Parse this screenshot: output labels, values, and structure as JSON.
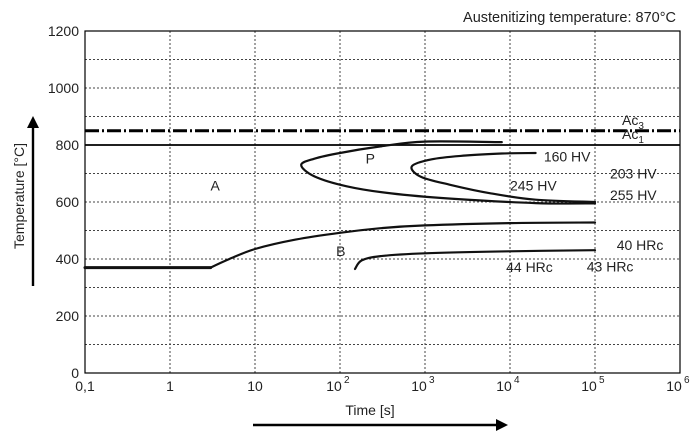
{
  "chart_data": {
    "type": "line",
    "title": "Austenitizing temperature: 870°C",
    "xlabel": "Time [s]",
    "ylabel": "Temperature [°C]",
    "x_scale": "log",
    "xlim": [
      0.1,
      1000000
    ],
    "ylim": [
      0,
      1200
    ],
    "x_ticks": [
      {
        "value": 0.1,
        "label": "0,1"
      },
      {
        "value": 1,
        "label": "1"
      },
      {
        "value": 10,
        "label": "10"
      },
      {
        "value": 100,
        "base": "10",
        "exp": "2"
      },
      {
        "value": 1000,
        "base": "10",
        "exp": "3"
      },
      {
        "value": 10000,
        "base": "10",
        "exp": "4"
      },
      {
        "value": 100000,
        "base": "10",
        "exp": "5"
      },
      {
        "value": 1000000,
        "base": "10",
        "exp": "6"
      }
    ],
    "y_ticks": [
      {
        "value": 0,
        "label": "0"
      },
      {
        "value": 200,
        "label": "200"
      },
      {
        "value": 400,
        "label": "400"
      },
      {
        "value": 600,
        "label": "600"
      },
      {
        "value": 800,
        "label": "800"
      },
      {
        "value": 1000,
        "label": "1000"
      },
      {
        "value": 1200,
        "label": "1200"
      }
    ],
    "grid": true,
    "horizontal_lines": [
      {
        "y": 850,
        "style": "dash-dot",
        "label_base": "Ac",
        "label_sub": "3"
      },
      {
        "y": 800,
        "style": "solid",
        "label_base": "Ac",
        "label_sub": "1"
      }
    ],
    "series": [
      {
        "style": "thick",
        "points": [
          [
            0.1,
            370
          ],
          [
            3,
            370
          ]
        ]
      },
      {
        "style": "solid",
        "points": [
          [
            3,
            370
          ],
          [
            5,
            400
          ],
          [
            10,
            435
          ],
          [
            30,
            468
          ],
          [
            100,
            492
          ],
          [
            300,
            508
          ],
          [
            1000,
            518
          ],
          [
            10000,
            526
          ],
          [
            100000,
            528
          ]
        ]
      },
      {
        "style": "solid",
        "points": [
          [
            8000,
            810
          ],
          [
            1000,
            812
          ],
          [
            300,
            795
          ],
          [
            100,
            772
          ],
          [
            50,
            752
          ],
          [
            35,
            730
          ],
          [
            50,
            690
          ],
          [
            120,
            655
          ],
          [
            400,
            630
          ],
          [
            2000,
            612
          ],
          [
            20000,
            596
          ],
          [
            100000,
            595
          ]
        ]
      },
      {
        "style": "solid",
        "points": [
          [
            20000,
            772
          ],
          [
            8000,
            770
          ],
          [
            3000,
            763
          ],
          [
            1200,
            750
          ],
          [
            700,
            725
          ],
          [
            900,
            688
          ],
          [
            2000,
            660
          ],
          [
            6000,
            630
          ],
          [
            20000,
            608
          ],
          [
            100000,
            600
          ]
        ]
      },
      {
        "style": "solid",
        "points": [
          [
            150,
            365
          ],
          [
            180,
            395
          ],
          [
            300,
            410
          ],
          [
            1000,
            420
          ],
          [
            10000,
            427
          ],
          [
            100000,
            431
          ]
        ]
      }
    ],
    "annotations": [
      {
        "text": "A",
        "x": 3,
        "y": 640
      },
      {
        "text": "P",
        "x": 200,
        "y": 735
      },
      {
        "text": "B",
        "x": 90,
        "y": 410
      },
      {
        "text": "160 HV",
        "x": 25000,
        "y": 742
      },
      {
        "text": "203 HV",
        "x": 150000,
        "y": 683
      },
      {
        "text": "245 HV",
        "x": 10000,
        "y": 640
      },
      {
        "text": "255 HV",
        "x": 150000,
        "y": 607
      },
      {
        "text": "40 HRc",
        "x": 180000,
        "y": 431
      },
      {
        "text": "44 HRc",
        "x": 9000,
        "y": 354
      },
      {
        "text": "43 HRc",
        "x": 80000,
        "y": 356
      }
    ],
    "legend": "none"
  }
}
